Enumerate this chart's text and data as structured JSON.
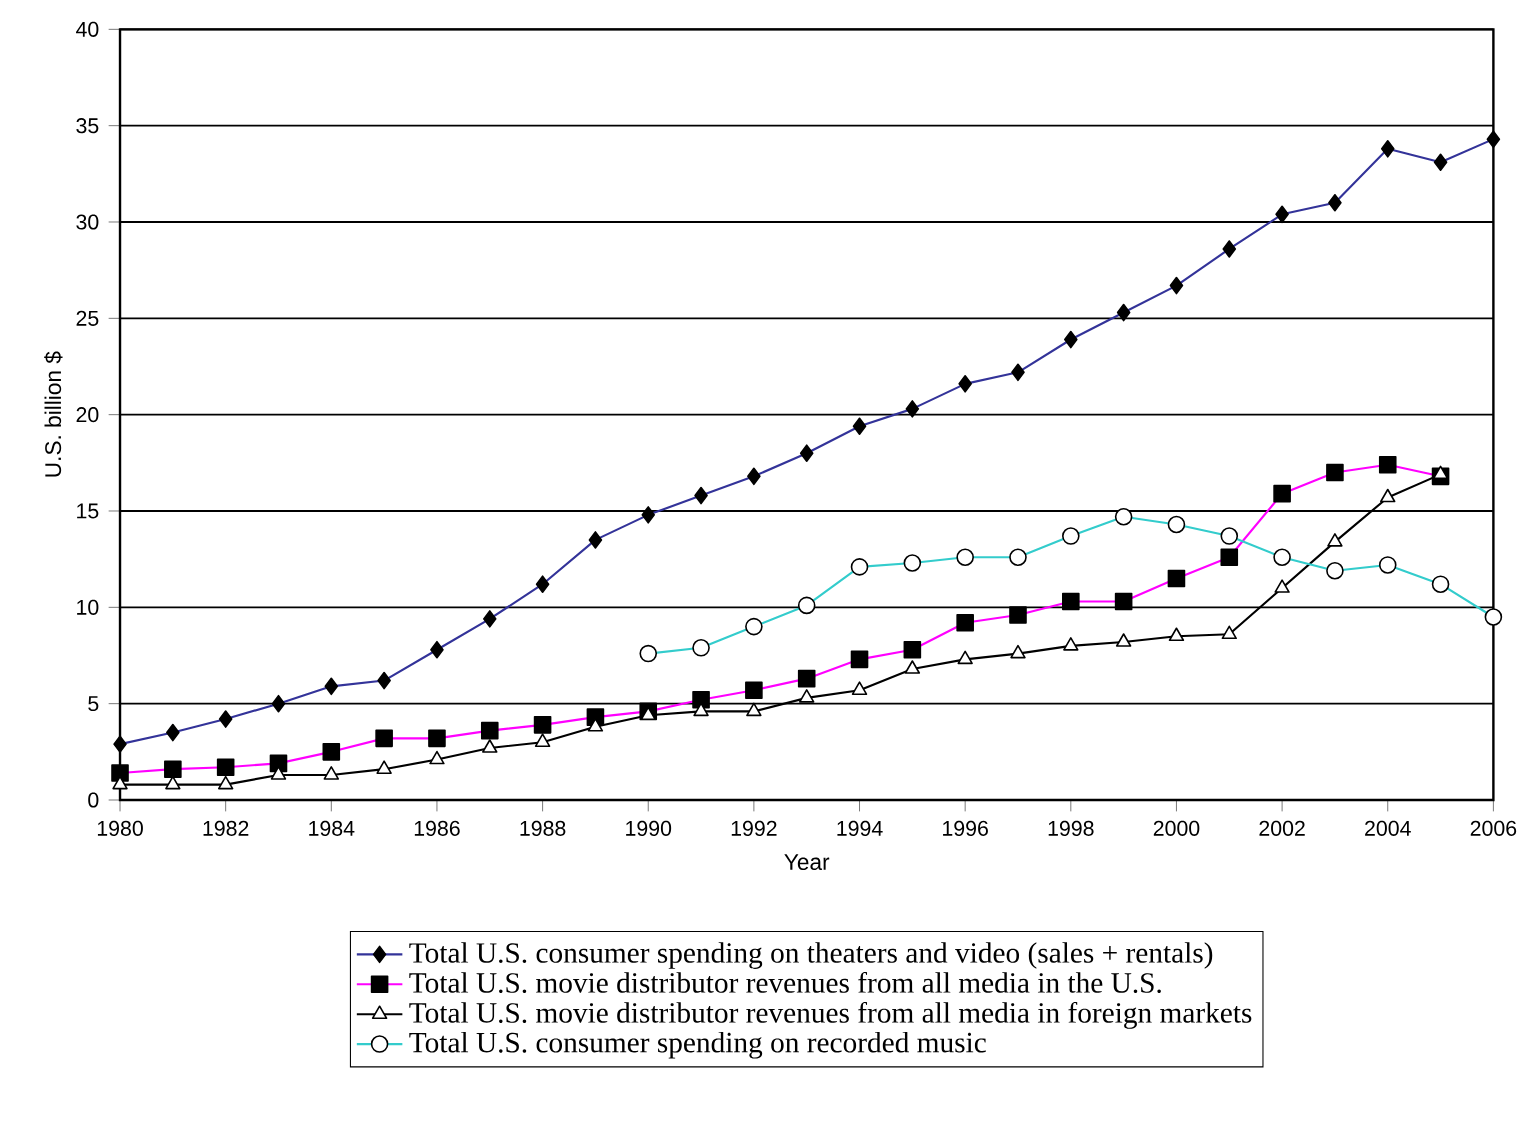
{
  "chart_data": {
    "type": "line",
    "xlabel": "Year",
    "ylabel": "U.S. billion $",
    "x": [
      1980,
      1981,
      1982,
      1983,
      1984,
      1985,
      1986,
      1987,
      1988,
      1989,
      1990,
      1991,
      1992,
      1993,
      1994,
      1995,
      1996,
      1997,
      1998,
      1999,
      2000,
      2001,
      2002,
      2003,
      2004,
      2005,
      2006
    ],
    "series": [
      {
        "name": "Total U.S. consumer spending on theaters and video (sales + rentals)",
        "color": "#333399",
        "marker": "diamond",
        "values": [
          2.9,
          3.5,
          4.2,
          5.0,
          5.9,
          6.2,
          7.8,
          9.4,
          11.2,
          13.5,
          14.8,
          15.8,
          16.8,
          18.0,
          19.4,
          20.3,
          21.6,
          22.2,
          23.9,
          25.3,
          26.7,
          28.6,
          30.4,
          31.0,
          33.8,
          33.1,
          34.3
        ]
      },
      {
        "name": "Total U.S. movie distributor revenues from all media in the U.S.",
        "color": "#ff00ff",
        "marker": "square",
        "values": [
          1.4,
          1.6,
          1.7,
          1.9,
          2.5,
          3.2,
          3.2,
          3.6,
          3.9,
          4.3,
          4.6,
          5.2,
          5.7,
          6.3,
          7.3,
          7.8,
          9.2,
          9.6,
          10.3,
          10.3,
          11.5,
          12.6,
          15.9,
          17.0,
          17.4,
          16.8,
          null
        ]
      },
      {
        "name": "Total U.S. movie distributor revenues from all media in foreign markets",
        "color": "#000000",
        "marker": "triangle",
        "values": [
          0.8,
          0.8,
          0.8,
          1.3,
          1.3,
          1.6,
          2.1,
          2.7,
          3.0,
          3.8,
          4.4,
          4.6,
          4.6,
          5.3,
          5.7,
          6.8,
          7.3,
          7.6,
          8.0,
          8.2,
          8.5,
          8.6,
          11.0,
          13.4,
          15.7,
          16.9,
          null
        ]
      },
      {
        "name": "Total U.S. consumer spending on recorded music",
        "color": "#33cccc",
        "marker": "circle",
        "values": [
          null,
          null,
          null,
          null,
          null,
          null,
          null,
          null,
          null,
          null,
          7.6,
          7.9,
          9.0,
          10.1,
          12.1,
          12.3,
          12.6,
          12.6,
          13.7,
          14.7,
          14.3,
          13.7,
          12.6,
          11.9,
          12.2,
          11.2,
          9.5
        ]
      }
    ],
    "xlim": [
      1980,
      2006
    ],
    "ylim": [
      0,
      40
    ],
    "xticks": [
      1980,
      1982,
      1984,
      1986,
      1988,
      1990,
      1992,
      1994,
      1996,
      1998,
      2000,
      2002,
      2004,
      2006
    ],
    "yticks": [
      0,
      5,
      10,
      15,
      20,
      25,
      30,
      35,
      40
    ],
    "grid": "y",
    "legend": "bottom"
  }
}
